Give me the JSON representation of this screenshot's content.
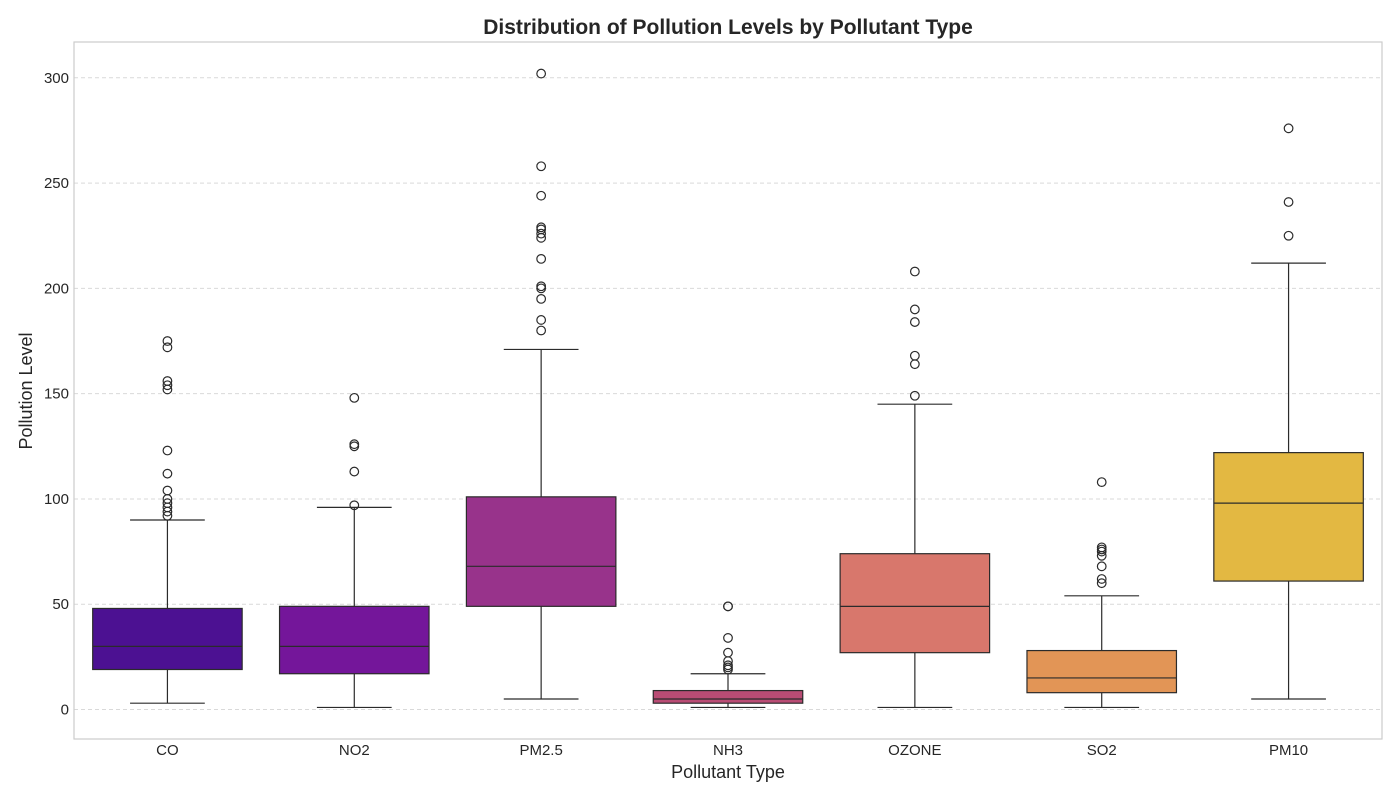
{
  "chart_data": {
    "type": "box",
    "title": "Distribution of Pollution Levels by Pollutant Type",
    "xlabel": "Pollutant Type",
    "ylabel": "Pollution Level",
    "ylim": [
      -14,
      317
    ],
    "yticks": [
      0,
      50,
      100,
      150,
      200,
      250,
      300
    ],
    "grid": "horizontal dashed",
    "categories": [
      "CO",
      "NO2",
      "PM2.5",
      "NH3",
      "OZONE",
      "SO2",
      "PM10"
    ],
    "boxes": [
      {
        "name": "CO",
        "color": "#4c1192",
        "whisker_low": 3,
        "q1": 19,
        "median": 30,
        "q3": 48,
        "whisker_high": 90,
        "outliers": [
          92,
          94,
          96,
          98,
          100,
          104,
          112,
          123,
          152,
          154,
          156,
          172,
          175
        ]
      },
      {
        "name": "NO2",
        "color": "#74169a",
        "whisker_low": 1,
        "q1": 17,
        "median": 30,
        "q3": 49,
        "whisker_high": 96,
        "outliers": [
          97,
          113,
          125,
          126,
          148
        ]
      },
      {
        "name": "PM2.5",
        "color": "#98338b",
        "whisker_low": 5,
        "q1": 49,
        "median": 68,
        "q3": 101,
        "whisker_high": 171,
        "outliers": [
          180,
          185,
          195,
          200,
          201,
          214,
          224,
          226,
          228,
          229,
          244,
          258,
          302
        ]
      },
      {
        "name": "NH3",
        "color": "#b94c74",
        "whisker_low": 1,
        "q1": 3,
        "median": 5,
        "q3": 9,
        "whisker_high": 17,
        "outliers": [
          19,
          20,
          21,
          23,
          27,
          34,
          49,
          49
        ]
      },
      {
        "name": "OZONE",
        "color": "#d8776c",
        "whisker_low": 1,
        "q1": 27,
        "median": 49,
        "q3": 74,
        "whisker_high": 145,
        "outliers": [
          149,
          164,
          168,
          184,
          190,
          208
        ]
      },
      {
        "name": "SO2",
        "color": "#e29556",
        "whisker_low": 1,
        "q1": 8,
        "median": 15,
        "q3": 28,
        "whisker_high": 54,
        "outliers": [
          60,
          62,
          68,
          73,
          75,
          76,
          77,
          108
        ]
      },
      {
        "name": "PM10",
        "color": "#e3b842",
        "whisker_low": 5,
        "q1": 61,
        "median": 98,
        "q3": 122,
        "whisker_high": 212,
        "outliers": [
          225,
          241,
          276
        ]
      }
    ]
  }
}
